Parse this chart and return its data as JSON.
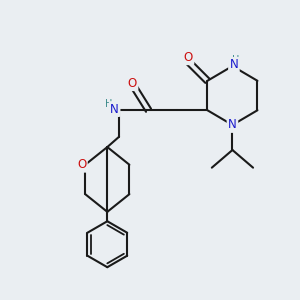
{
  "bg_color": "#eaeef2",
  "atom_colors": {
    "N": "#1a1acd",
    "O": "#cc1111",
    "H_N": "#3a8a8a"
  },
  "line_color": "#1a1a1a",
  "font_size_atom": 8.5,
  "font_size_H": 7.0
}
